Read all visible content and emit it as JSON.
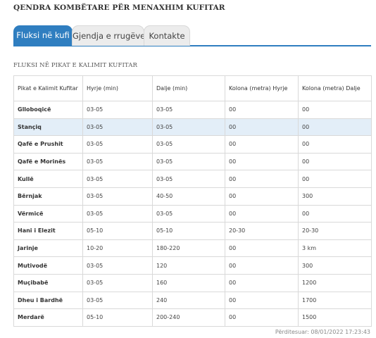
{
  "page": {
    "title": "QENDRA KOMBËTARE PËR MENAXHIM KUFITAR"
  },
  "tabs": [
    {
      "label": "Fluksi në kufi",
      "active": true
    },
    {
      "label": "Gjendja e rrugëve",
      "active": false
    },
    {
      "label": "Kontakte",
      "active": false
    }
  ],
  "section": {
    "title": "FLUKSI NË PIKAT E KALIMIT KUFITAR"
  },
  "table": {
    "headers": [
      "Pikat e Kalimit Kufitar",
      "Hyrje (min)",
      "Dalje (min)",
      "Kolona (metra) Hyrje",
      "Kolona (metra) Dalje"
    ],
    "rows": [
      [
        "Gllobоqicë",
        "03-05",
        "03-05",
        "00",
        "00"
      ],
      [
        "Stançiq",
        "03-05",
        "03-05",
        "00",
        "00"
      ],
      [
        "Qafë e Prushit",
        "03-05",
        "03-05",
        "00",
        "00"
      ],
      [
        "Qafë e Morinës",
        "03-05",
        "03-05",
        "00",
        "00"
      ],
      [
        "Kullë",
        "03-05",
        "03-05",
        "00",
        "00"
      ],
      [
        "Bërnjak",
        "03-05",
        "40-50",
        "00",
        "300"
      ],
      [
        "Vërmicë",
        "03-05",
        "03-05",
        "00",
        "00"
      ],
      [
        "Hani i Elezit",
        "05-10",
        "05-10",
        "20-30",
        "20-30"
      ],
      [
        "Jarinje",
        "10-20",
        "180-220",
        "00",
        "3 km"
      ],
      [
        "Mutivodë",
        "03-05",
        "120",
        "00",
        "300"
      ],
      [
        "Muçibabë",
        "03-05",
        "160",
        "00",
        "1200"
      ],
      [
        "Dheu i Bardhë",
        "03-05",
        "240",
        "00",
        "1700"
      ],
      [
        "Merdarë",
        "05-10",
        "200-240",
        "00",
        "1500"
      ]
    ]
  },
  "footer": {
    "updated": "Përditesuar: 08/01/2022 17:23:43"
  },
  "colors": {
    "accent": "#2f7ec0",
    "highlight_row": "#e3eef8"
  }
}
